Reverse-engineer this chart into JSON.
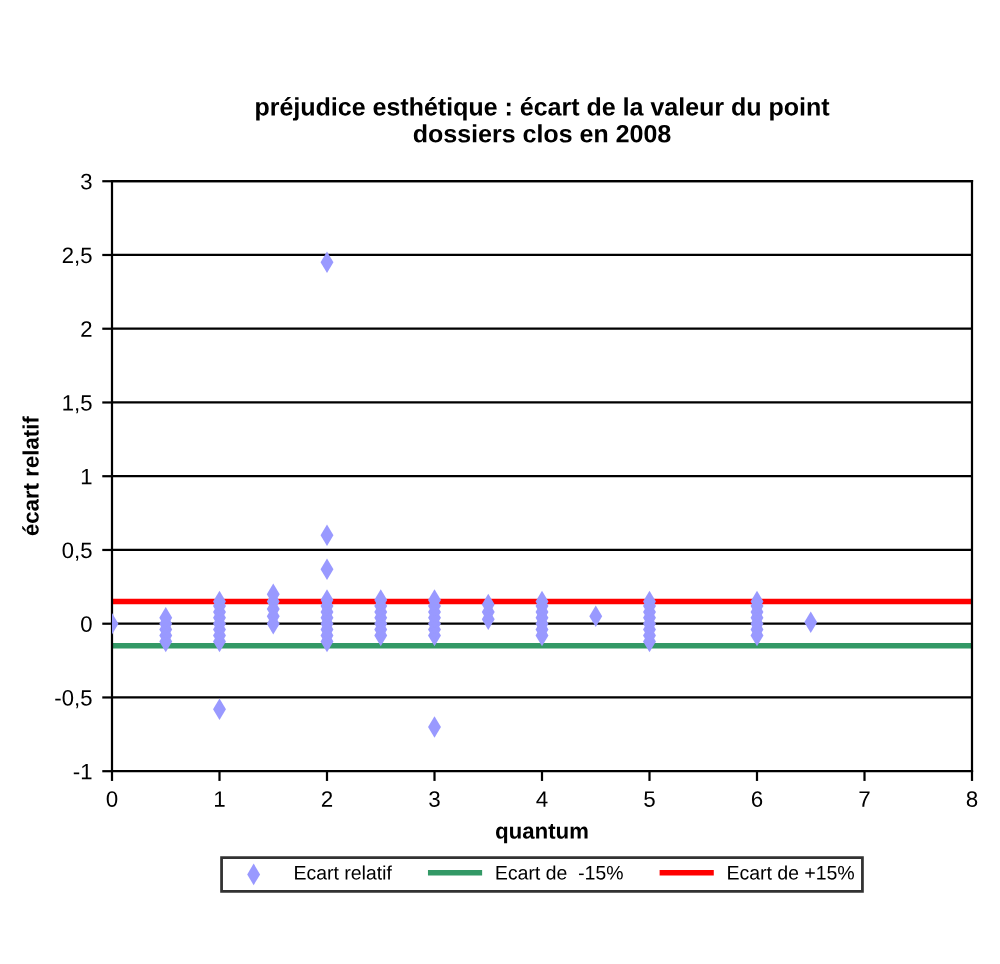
{
  "chart_data": {
    "type": "scatter",
    "title": "préjudice esthétique : écart de la valeur du point\ndossiers clos en 2008",
    "xlabel": "quantum",
    "ylabel": "écart relatif",
    "xlim": [
      0,
      8
    ],
    "xticks": [
      0,
      1,
      2,
      3,
      4,
      5,
      6,
      7,
      8
    ],
    "ylim": [
      -1,
      3
    ],
    "yticks": [
      {
        "value": -1,
        "label": "-1"
      },
      {
        "value": -0.5,
        "label": "-0,5"
      },
      0,
      {
        "value": 0.5,
        "label": "0,5"
      },
      1,
      {
        "value": 1.5,
        "label": "1,5"
      },
      2,
      {
        "value": 2.5,
        "label": "2,5"
      },
      3
    ],
    "grid": "y",
    "legend": "bottom",
    "series": [
      {
        "name": "Ecart relatif",
        "marker": "diamond",
        "color": "#9999ff",
        "x": [
          0,
          0.5,
          0.5,
          0.5,
          0.5,
          0.5,
          1,
          1,
          1,
          1,
          1,
          1,
          1,
          1,
          1,
          1.5,
          1.5,
          1.5,
          1.5,
          1.5,
          2,
          2,
          2,
          2,
          2,
          2,
          2,
          2,
          2,
          2,
          2,
          2.5,
          2.5,
          2.5,
          2.5,
          2.5,
          2.5,
          2.5,
          3,
          3,
          3,
          3,
          3,
          3,
          3,
          3,
          3.5,
          3.5,
          3.5,
          4,
          4,
          4,
          4,
          4,
          4,
          4,
          4.5,
          5,
          5,
          5,
          5,
          5,
          5,
          5,
          5,
          6,
          6,
          6,
          6,
          6,
          6,
          6,
          6.5
        ],
        "values": [
          0,
          -0.12,
          -0.08,
          -0.04,
          0,
          0.04,
          -0.58,
          -0.12,
          -0.08,
          -0.04,
          0,
          0.04,
          0.08,
          0.12,
          0.15,
          0,
          0.05,
          0.1,
          0.15,
          0.2,
          2.45,
          0.6,
          0.37,
          -0.12,
          -0.08,
          -0.04,
          0,
          0.04,
          0.08,
          0.12,
          0.16,
          -0.08,
          -0.04,
          0,
          0.04,
          0.08,
          0.12,
          0.16,
          -0.7,
          -0.08,
          -0.04,
          0,
          0.04,
          0.08,
          0.12,
          0.16,
          0.03,
          0.08,
          0.13,
          -0.08,
          -0.04,
          0,
          0.04,
          0.08,
          0.12,
          0.15,
          0.05,
          -0.12,
          -0.08,
          -0.04,
          0,
          0.04,
          0.08,
          0.12,
          0.15,
          -0.08,
          -0.04,
          0,
          0.04,
          0.08,
          0.12,
          0.15,
          0.01
        ]
      },
      {
        "name": "Ecart de  -15%",
        "type": "line",
        "color": "#339966",
        "x": [
          0,
          8
        ],
        "values": [
          -0.15,
          -0.15
        ]
      },
      {
        "name": "Ecart de +15%",
        "type": "line",
        "color": "#ff0000",
        "x": [
          0,
          8
        ],
        "values": [
          0.15,
          0.15
        ]
      }
    ]
  }
}
